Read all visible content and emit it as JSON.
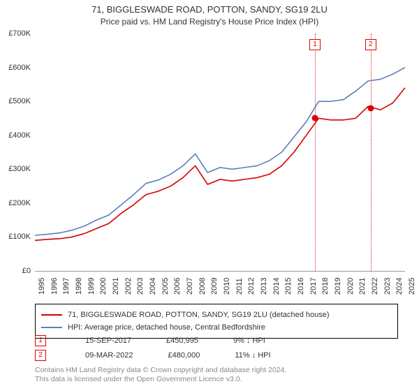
{
  "title": "71, BIGGLESWADE ROAD, POTTON, SANDY, SG19 2LU",
  "subtitle": "Price paid vs. HM Land Registry's House Price Index (HPI)",
  "chart": {
    "type": "line",
    "background_color": "#ffffff",
    "grid_color": "transparent",
    "axis_color": "#999999",
    "ylim": [
      0,
      700
    ],
    "ytick_step": 100,
    "ytick_labels": [
      "£0",
      "£100K",
      "£200K",
      "£300K",
      "£400K",
      "£500K",
      "£600K",
      "£700K"
    ],
    "years": [
      1995,
      1996,
      1997,
      1998,
      1999,
      2000,
      2001,
      2002,
      2003,
      2004,
      2005,
      2006,
      2007,
      2008,
      2009,
      2010,
      2011,
      2012,
      2013,
      2014,
      2015,
      2016,
      2017,
      2018,
      2019,
      2020,
      2021,
      2022,
      2023,
      2024,
      2025
    ],
    "series": [
      {
        "name": "property",
        "label": "71, BIGGLESWADE ROAD, POTTON, SANDY, SG19 2LU (detached house)",
        "color": "#d40000",
        "width": 1.6,
        "values": [
          90,
          93,
          95,
          100,
          110,
          125,
          140,
          170,
          195,
          225,
          235,
          250,
          275,
          310,
          255,
          270,
          265,
          270,
          275,
          285,
          310,
          350,
          400,
          450,
          445,
          445,
          450,
          485,
          475,
          495,
          540
        ]
      },
      {
        "name": "hpi",
        "label": "HPI: Average price, detached house, Central Bedfordshire",
        "color": "#5a7fb8",
        "width": 1.6,
        "values": [
          105,
          108,
          112,
          120,
          132,
          150,
          165,
          195,
          225,
          258,
          268,
          285,
          310,
          345,
          290,
          305,
          300,
          305,
          310,
          325,
          350,
          395,
          440,
          500,
          500,
          505,
          530,
          560,
          565,
          580,
          600
        ]
      }
    ],
    "markers": [
      {
        "idx": 1,
        "year": 2017.7,
        "value": 450.995,
        "date": "15-SEP-2017",
        "price": "£450,995",
        "pct": "9%",
        "dir": "↓ HPI"
      },
      {
        "idx": 2,
        "year": 2022.2,
        "value": 480.0,
        "date": "09-MAR-2022",
        "price": "£480,000",
        "pct": "11%",
        "dir": "↓ HPI"
      }
    ]
  },
  "footer": {
    "l1": "Contains HM Land Registry data © Crown copyright and database right 2024.",
    "l2": "This data is licensed under the Open Government Licence v3.0."
  }
}
